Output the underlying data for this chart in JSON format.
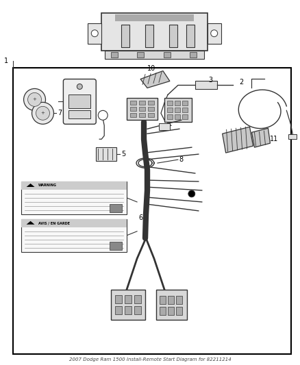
{
  "title": "2007 Dodge Ram 1500 Install-Remote Start Diagram for 82211214",
  "bg_color": "#ffffff",
  "line_color": "#333333",
  "label_color": "#000000",
  "fig_w": 4.38,
  "fig_h": 5.33,
  "dpi": 100
}
